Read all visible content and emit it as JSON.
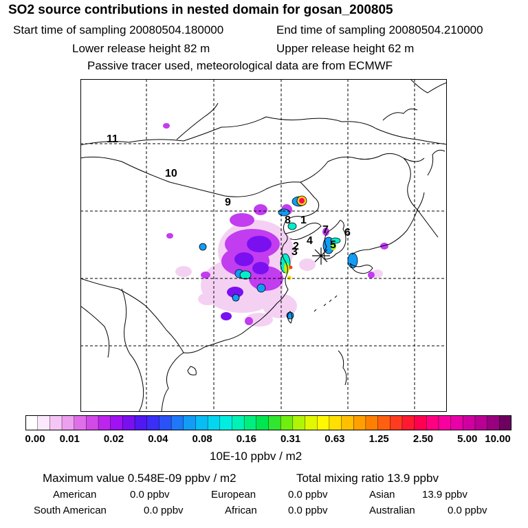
{
  "header": {
    "title": "SO2 source contributions in nested domain for gosan_200805",
    "start_label": "Start time of sampling 20080504.180000",
    "end_label": "End time of sampling 20080504.210000",
    "lower_label": "Lower release height   82 m",
    "upper_label": "Upper release height   62 m",
    "subtitle": "Passive tracer used, meteorological data are from ECMWF"
  },
  "map": {
    "region_labels": [
      "1",
      "2",
      "3",
      "4",
      "5",
      "6",
      "7",
      "8",
      "9",
      "10",
      "11"
    ],
    "receptor_marker": "asterisk"
  },
  "colorbar": {
    "tick_labels": [
      "0.00",
      "0.01",
      "0.02",
      "0.04",
      "0.08",
      "0.16",
      "0.31",
      "0.63",
      "1.25",
      "2.50",
      "5.00",
      "10.00"
    ],
    "colors": [
      "#ffffff",
      "#fce8fc",
      "#f5c6f5",
      "#eca0ef",
      "#df6ee8",
      "#d04ae6",
      "#bc25ed",
      "#a012f2",
      "#7a10f0",
      "#5218f2",
      "#3a2ef7",
      "#2a52f7",
      "#1e78f7",
      "#129cf6",
      "#08bcf4",
      "#05d6f0",
      "#00eee0",
      "#00f2b4",
      "#00ee80",
      "#00e650",
      "#30e630",
      "#70ee10",
      "#b0f408",
      "#e0f800",
      "#fff800",
      "#ffe000",
      "#ffc000",
      "#ffa000",
      "#ff8000",
      "#ff6010",
      "#ff3c20",
      "#ff1a30",
      "#ff0050",
      "#ff0080",
      "#f800a0",
      "#e800a8",
      "#d000a0",
      "#b80094",
      "#980080",
      "#6e0060"
    ],
    "units": "10E-10 ppbv / m2"
  },
  "stats": {
    "max_value": "Maximum value  0.548E-09 ppbv / m2",
    "total_mixing": "Total mixing ratio       13.9 ppbv",
    "rows": [
      [
        {
          "name": "American",
          "value": "0.0 ppbv"
        },
        {
          "name": "European",
          "value": "0.0 ppbv"
        },
        {
          "name": "Asian",
          "value": "13.9 ppbv"
        }
      ],
      [
        {
          "name": "South American",
          "value": "0.0 ppbv"
        },
        {
          "name": "African",
          "value": "0.0 ppbv"
        },
        {
          "name": "Australian",
          "value": "0.0 ppbv"
        }
      ]
    ]
  }
}
